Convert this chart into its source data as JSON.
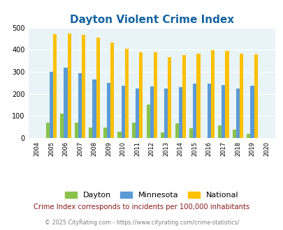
{
  "title": "Dayton Violent Crime Index",
  "years": [
    2004,
    2005,
    2006,
    2007,
    2008,
    2009,
    2010,
    2011,
    2012,
    2013,
    2014,
    2015,
    2016,
    2017,
    2018,
    2019,
    2020
  ],
  "dayton": [
    0,
    68,
    110,
    68,
    47,
    47,
    27,
    68,
    150,
    25,
    65,
    45,
    0,
    58,
    38,
    20,
    0
  ],
  "minnesota": [
    0,
    300,
    320,
    295,
    265,
    248,
    237,
    223,
    234,
    223,
    232,
    245,
    245,
    240,
    223,
    237,
    0
  ],
  "national": [
    0,
    469,
    472,
    466,
    455,
    432,
    405,
    387,
    387,
    367,
    375,
    383,
    398,
    394,
    381,
    379,
    0
  ],
  "ylim": [
    0,
    500
  ],
  "yticks": [
    0,
    100,
    200,
    300,
    400,
    500
  ],
  "bg_color": "#e8f4f8",
  "dayton_color": "#8bc34a",
  "minnesota_color": "#5b9bd5",
  "national_color": "#ffc000",
  "title_color": "#1464a0",
  "annotation_color": "#8b1a1a",
  "copyright_color": "#808080",
  "subtitle": "Crime Index corresponds to incidents per 100,000 inhabitants",
  "copyright": "© 2025 CityRating.com - https://www.cityrating.com/crime-statistics/"
}
